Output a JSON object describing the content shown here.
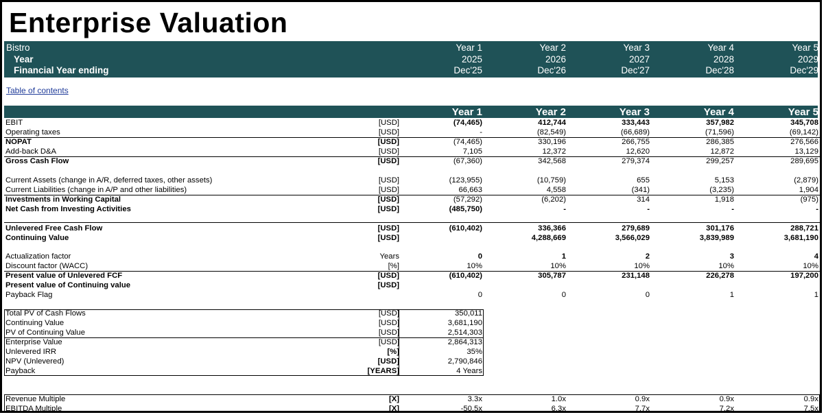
{
  "title": "Enterprise Valuation",
  "header": {
    "company": "Bistro",
    "year_label": "Year",
    "fy_label": "Financial Year ending",
    "periods": [
      "Year 1",
      "Year 2",
      "Year 3",
      "Year 4",
      "Year 5"
    ],
    "years": [
      "2025",
      "2026",
      "2027",
      "2028",
      "2029"
    ],
    "fy_end": [
      "Dec'25",
      "Dec'26",
      "Dec'27",
      "Dec'28",
      "Dec'29"
    ]
  },
  "toc_link": "Table of contents",
  "band": [
    "Year 1",
    "Year 2",
    "Year 3",
    "Year 4",
    "Year 5"
  ],
  "rows": [
    {
      "label": "EBIT",
      "unit": "[USD]",
      "values": [
        "(74,465)",
        "412,744",
        "333,443",
        "357,982",
        "345,708"
      ],
      "bold": true
    },
    {
      "label": "Operating taxes",
      "unit": "[USD]",
      "values": [
        "-",
        "(82,549)",
        "(66,689)",
        "(71,596)",
        "(69,142)"
      ]
    },
    {
      "label": "NOPAT",
      "unit": "[USD]",
      "values": [
        "(74,465)",
        "330,196",
        "266,755",
        "286,385",
        "276,566"
      ]
    },
    {
      "label": "Add-back D&A",
      "unit": "[USD]",
      "values": [
        "7,105",
        "12,372",
        "12,620",
        "12,872",
        "13,129"
      ]
    },
    {
      "label": "Gross Cash Flow",
      "unit": "[USD]",
      "values": [
        "(67,360)",
        "342,568",
        "279,374",
        "299,257",
        "289,695"
      ]
    },
    {
      "label": "Current Assets (change in A/R, deferred taxes, other assets)",
      "unit": "[USD]",
      "values": [
        "(123,955)",
        "(10,759)",
        "655",
        "5,153",
        "(2,879)"
      ]
    },
    {
      "label": "Current Liabilities (change in A/P and other liabilities)",
      "unit": "[USD]",
      "values": [
        "66,663",
        "4,558",
        "(341)",
        "(3,235)",
        "1,904"
      ]
    },
    {
      "label": "Investments in Working Capital",
      "unit": "[USD]",
      "values": [
        "(57,292)",
        "(6,202)",
        "314",
        "1,918",
        "(975)"
      ]
    },
    {
      "label": "Net Cash from Investing Activities",
      "unit": "[USD]",
      "values": [
        "(485,750)",
        "-",
        "-",
        "-",
        "-"
      ]
    },
    {
      "label": "Unlevered Free Cash Flow",
      "unit": "[USD]",
      "values": [
        "(610,402)",
        "336,366",
        "279,689",
        "301,176",
        "288,721"
      ]
    },
    {
      "label": "Continuing Value",
      "unit": "[USD]",
      "values": [
        "",
        "4,288,669",
        "3,566,029",
        "3,839,989",
        "3,681,190"
      ]
    },
    {
      "label": "Actualization factor",
      "unit": "Years",
      "values": [
        "0",
        "1",
        "2",
        "3",
        "4"
      ]
    },
    {
      "label": "Discount factor (WACC)",
      "unit": "[%]",
      "values": [
        "10%",
        "10%",
        "10%",
        "10%",
        "10%"
      ]
    },
    {
      "label": "Present value of Unlevered FCF",
      "unit": "[USD]",
      "values": [
        "(610,402)",
        "305,787",
        "231,148",
        "226,278",
        "197,200"
      ]
    },
    {
      "label": "Present value of Continuing  value",
      "unit": "[USD]",
      "values": [
        "",
        "",
        "",
        "",
        ""
      ]
    },
    {
      "label": "Payback Flag",
      "unit": "",
      "values": [
        "0",
        "0",
        "0",
        "1",
        "1"
      ]
    }
  ],
  "summary": [
    {
      "label": "Total PV of Cash Flows",
      "unit": "[USD]",
      "value": "350,011"
    },
    {
      "label": "Continuing Value",
      "unit": "[USD]",
      "value": "3,681,190"
    },
    {
      "label": "PV of Continuing Value",
      "unit": "[USD]",
      "value": "2,514,303"
    },
    {
      "label": "Enterprise Value",
      "unit": "[USD]",
      "value": "2,864,313"
    },
    {
      "label": "Unlevered IRR",
      "unit": "[%]",
      "value": "35%"
    },
    {
      "label": "NPV (Unlevered)",
      "unit": "[USD]",
      "value": "2,790,846"
    },
    {
      "label": "Payback",
      "unit": "[YEARS]",
      "value": "4 Years"
    }
  ],
  "multiples": [
    {
      "label": "Revenue Multiple",
      "unit": "[X]",
      "values": [
        "3.3x",
        "1.0x",
        "0.9x",
        "0.9x",
        "0.9x"
      ]
    },
    {
      "label": "EBITDA Multiple",
      "unit": "[X]",
      "values": [
        "-50.5x",
        "6.3x",
        "7.7x",
        "7.2x",
        "7.5x"
      ]
    }
  ],
  "colors": {
    "header_bg": "#1f5257",
    "link": "#1f3b99"
  }
}
